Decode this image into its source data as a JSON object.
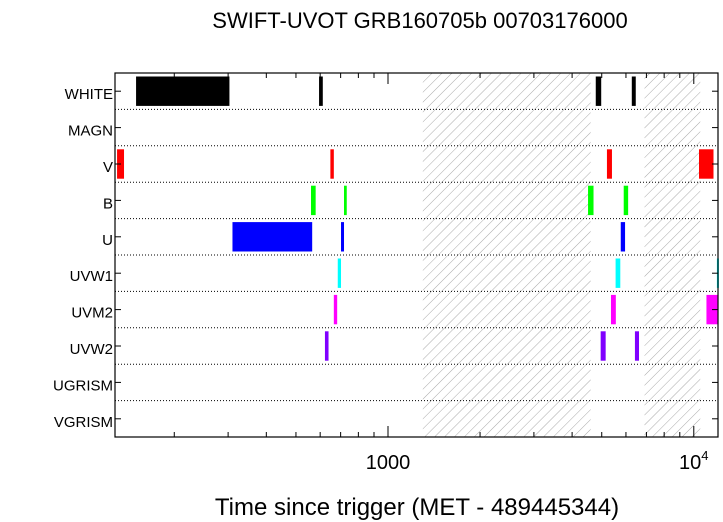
{
  "chart_data": {
    "type": "timeline",
    "title": "SWIFT-UVOT GRB160705b 00703176000",
    "xlabel": "Time since trigger (MET - 489445344)",
    "xscale": "log",
    "xlim": [
      128,
      12000
    ],
    "xticks": [
      {
        "value": 1000,
        "label": "1000"
      },
      {
        "value": 10000,
        "label": "10",
        "exp": "4"
      }
    ],
    "filters": [
      "WHITE",
      "MAGN",
      "V",
      "B",
      "U",
      "UVW1",
      "UVM2",
      "UVW2",
      "UGRISM",
      "VGRISM"
    ],
    "gaps": [
      [
        1300,
        4600
      ],
      [
        6900,
        10500
      ]
    ],
    "colors": {
      "WHITE": "#000000",
      "MAGN": "#808080",
      "V": "#ff0000",
      "B": "#00ff00",
      "U": "#0000ff",
      "UVW1": "#00ffff",
      "UVM2": "#ff00ff",
      "UVW2": "#8000ff",
      "UGRISM": "#888888",
      "VGRISM": "#888888",
      "gap_hatch": "#aaaaaa",
      "grid": "#000000"
    },
    "exposures": [
      {
        "filter": "WHITE",
        "start": 150,
        "end": 303
      },
      {
        "filter": "WHITE",
        "start": 595,
        "end": 612
      },
      {
        "filter": "WHITE",
        "start": 4780,
        "end": 4980
      },
      {
        "filter": "WHITE",
        "start": 6270,
        "end": 6460
      },
      {
        "filter": "V",
        "start": 130,
        "end": 137
      },
      {
        "filter": "V",
        "start": 648,
        "end": 665
      },
      {
        "filter": "V",
        "start": 5200,
        "end": 5400
      },
      {
        "filter": "V",
        "start": 10400,
        "end": 11600
      },
      {
        "filter": "B",
        "start": 560,
        "end": 580
      },
      {
        "filter": "B",
        "start": 718,
        "end": 733
      },
      {
        "filter": "B",
        "start": 4510,
        "end": 4700
      },
      {
        "filter": "B",
        "start": 5900,
        "end": 6100
      },
      {
        "filter": "U",
        "start": 310,
        "end": 565
      },
      {
        "filter": "U",
        "start": 702,
        "end": 718
      },
      {
        "filter": "U",
        "start": 5770,
        "end": 5960
      },
      {
        "filter": "UVW1",
        "start": 685,
        "end": 702
      },
      {
        "filter": "UVW1",
        "start": 5550,
        "end": 5750
      },
      {
        "filter": "UVW1",
        "start": 11900,
        "end": 12000
      },
      {
        "filter": "UVM2",
        "start": 665,
        "end": 682
      },
      {
        "filter": "UVM2",
        "start": 5360,
        "end": 5560
      },
      {
        "filter": "UVM2",
        "start": 11000,
        "end": 11950
      },
      {
        "filter": "UVW2",
        "start": 622,
        "end": 639
      },
      {
        "filter": "UVW2",
        "start": 4960,
        "end": 5150
      },
      {
        "filter": "UVW2",
        "start": 6420,
        "end": 6620
      }
    ]
  }
}
